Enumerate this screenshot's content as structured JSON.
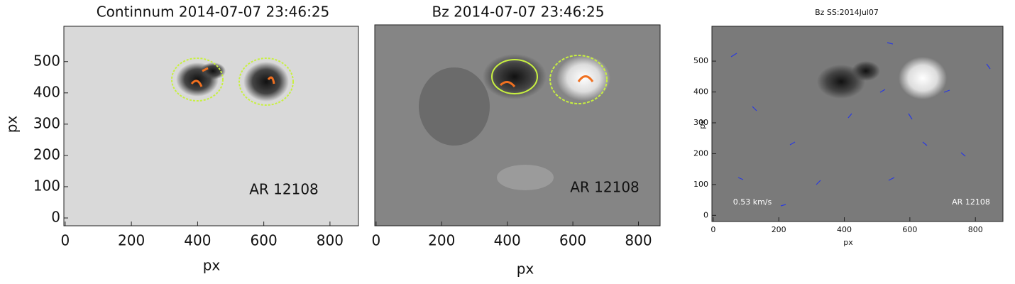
{
  "panels": [
    {
      "title": "Continnum 2014-07-07 23:46:25",
      "xlabel": "px",
      "ylabel": "px",
      "xticks": [
        0,
        200,
        400,
        600,
        800
      ],
      "yticks": [
        0,
        100,
        200,
        300,
        400,
        500
      ],
      "xlim": [
        -4,
        886
      ],
      "ylim": [
        -25,
        613
      ],
      "annotation": "AR 12108"
    },
    {
      "title": "Bz 2014-07-07 23:46:25",
      "xlabel": "px",
      "xticks": [
        0,
        200,
        400,
        600,
        800
      ],
      "xlim": [
        -4,
        866
      ],
      "annotation": "AR 12108"
    },
    {
      "title": "Bz SS:2014Jul07",
      "xlabel": "px",
      "ylabel": "px",
      "xticks": [
        0,
        200,
        400,
        600,
        800
      ],
      "yticks": [
        0,
        100,
        200,
        300,
        400,
        500
      ],
      "xlim": [
        -4,
        884
      ],
      "ylim": [
        -20,
        613
      ],
      "annotation": "AR 12108",
      "scale_label": "0.53 km/s"
    }
  ]
}
